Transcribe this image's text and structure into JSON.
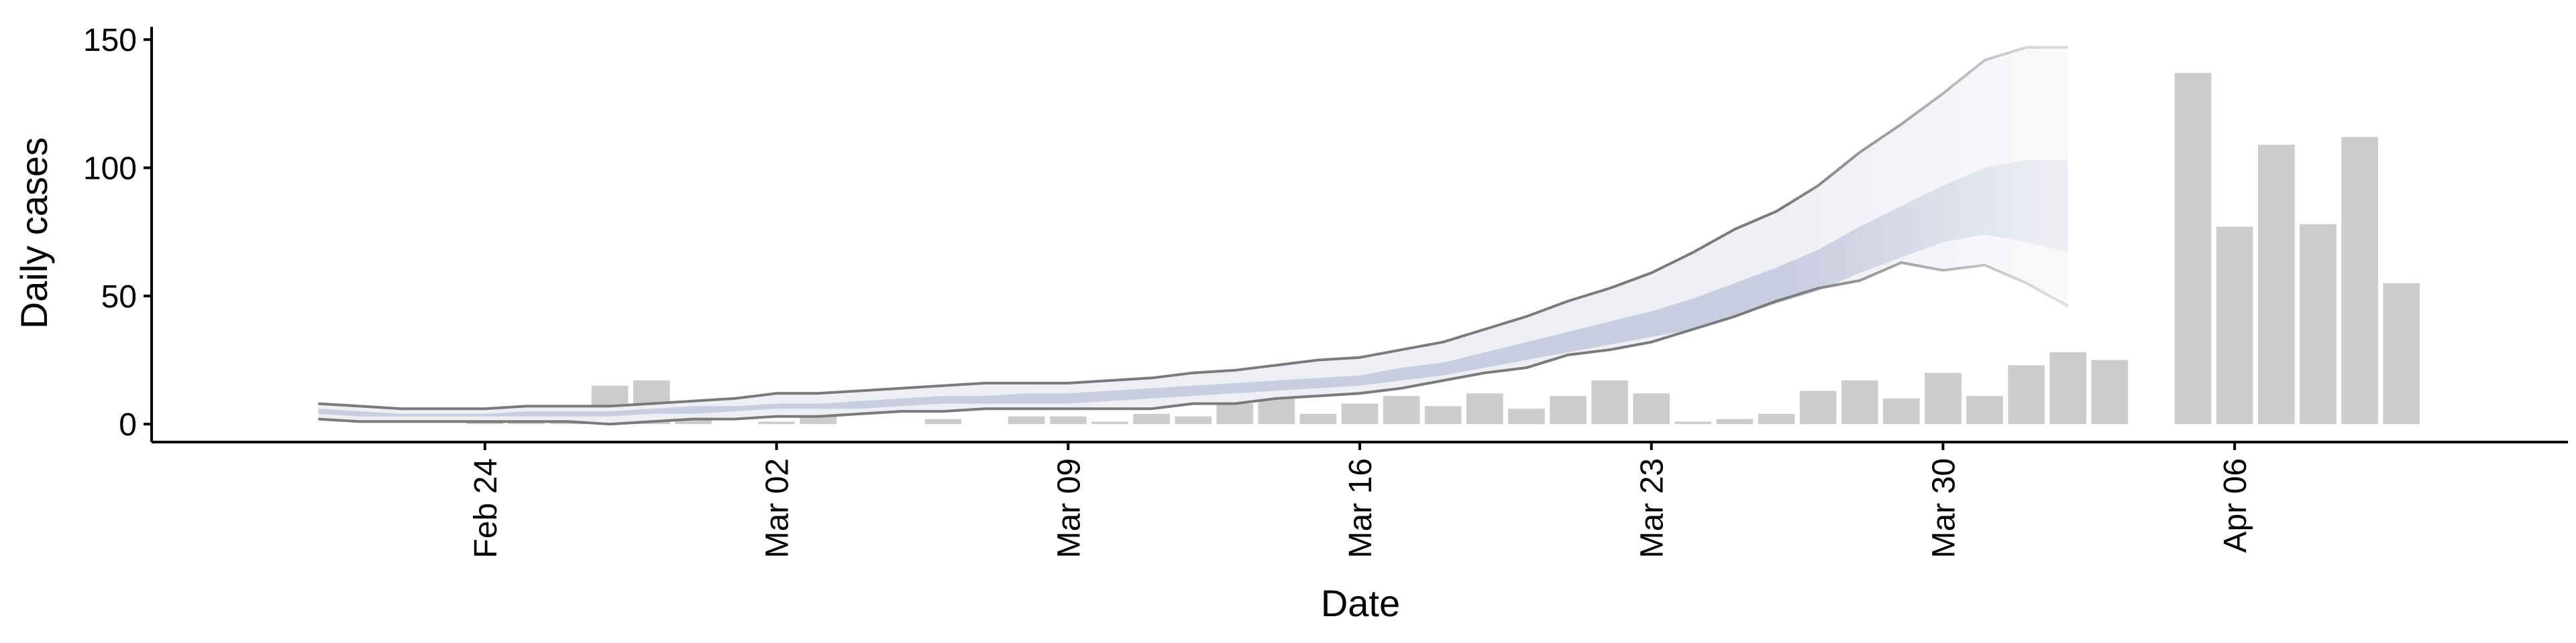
{
  "chart_data": {
    "type": "bar",
    "xlabel": "Date",
    "ylabel": "Daily cases",
    "ylim": [
      -7,
      155
    ],
    "xlim": [
      "2020-02-16",
      "2020-04-14"
    ],
    "x_ticks": [
      {
        "date": "2020-02-24",
        "label": "Feb 24"
      },
      {
        "date": "2020-03-02",
        "label": "Mar 02"
      },
      {
        "date": "2020-03-09",
        "label": "Mar 09"
      },
      {
        "date": "2020-03-16",
        "label": "Mar 16"
      },
      {
        "date": "2020-03-23",
        "label": "Mar 23"
      },
      {
        "date": "2020-03-30",
        "label": "Mar 30"
      },
      {
        "date": "2020-04-06",
        "label": "Apr 06"
      }
    ],
    "y_ticks": [
      0,
      50,
      100,
      150
    ],
    "grid": false,
    "colors": {
      "bars": "#cccccc",
      "band_outer": "#eeeff5",
      "band_inner": "#c9cde0",
      "outline": "#7a7a7a",
      "axis": "#000000"
    },
    "bars": {
      "dates": [
        "2020-02-24",
        "2020-02-25",
        "2020-02-26",
        "2020-02-27",
        "2020-02-28",
        "2020-02-29",
        "2020-03-01",
        "2020-03-02",
        "2020-03-03",
        "2020-03-04",
        "2020-03-05",
        "2020-03-06",
        "2020-03-07",
        "2020-03-08",
        "2020-03-09",
        "2020-03-10",
        "2020-03-11",
        "2020-03-12",
        "2020-03-13",
        "2020-03-14",
        "2020-03-15",
        "2020-03-16",
        "2020-03-17",
        "2020-03-18",
        "2020-03-19",
        "2020-03-20",
        "2020-03-21",
        "2020-03-22",
        "2020-03-23",
        "2020-03-24",
        "2020-03-25",
        "2020-03-26",
        "2020-03-27",
        "2020-03-28",
        "2020-03-29",
        "2020-03-30",
        "2020-03-31",
        "2020-04-01",
        "2020-04-02",
        "2020-04-03",
        "2020-04-04",
        "2020-04-05",
        "2020-04-06",
        "2020-04-07",
        "2020-04-08",
        "2020-04-09",
        "2020-04-10"
      ],
      "values": [
        3,
        3,
        6,
        15,
        17,
        2,
        0,
        1,
        10,
        0,
        0,
        2,
        0,
        3,
        3,
        1,
        4,
        3,
        8,
        20,
        4,
        8,
        11,
        7,
        12,
        6,
        11,
        17,
        12,
        1,
        2,
        4,
        13,
        17,
        10,
        20,
        11,
        23,
        28,
        25,
        0,
        137,
        77,
        109,
        78,
        112,
        55
      ]
    },
    "forecast": {
      "dates": [
        "2020-02-20",
        "2020-02-21",
        "2020-02-22",
        "2020-02-23",
        "2020-02-24",
        "2020-02-25",
        "2020-02-26",
        "2020-02-27",
        "2020-02-28",
        "2020-02-29",
        "2020-03-01",
        "2020-03-02",
        "2020-03-03",
        "2020-03-04",
        "2020-03-05",
        "2020-03-06",
        "2020-03-07",
        "2020-03-08",
        "2020-03-09",
        "2020-03-10",
        "2020-03-11",
        "2020-03-12",
        "2020-03-13",
        "2020-03-14",
        "2020-03-15",
        "2020-03-16",
        "2020-03-17",
        "2020-03-18",
        "2020-03-19",
        "2020-03-20",
        "2020-03-21",
        "2020-03-22",
        "2020-03-23",
        "2020-03-24",
        "2020-03-25",
        "2020-03-26",
        "2020-03-27",
        "2020-03-28",
        "2020-03-29",
        "2020-03-30",
        "2020-03-31",
        "2020-04-01",
        "2020-04-02"
      ],
      "upper": [
        8,
        7,
        6,
        6,
        6,
        7,
        7,
        7,
        8,
        9,
        10,
        12,
        12,
        13,
        14,
        15,
        16,
        16,
        16,
        17,
        18,
        20,
        21,
        23,
        25,
        26,
        29,
        32,
        37,
        42,
        48,
        53,
        59,
        67,
        76,
        83,
        93,
        106,
        117,
        129,
        142,
        147,
        147
      ],
      "inner_upper": [
        6,
        5,
        4,
        4,
        4,
        5,
        5,
        5,
        6,
        7,
        7,
        8,
        8,
        9,
        10,
        11,
        11,
        12,
        12,
        13,
        14,
        15,
        16,
        17,
        18,
        19,
        22,
        24,
        28,
        32,
        36,
        40,
        44,
        49,
        55,
        61,
        68,
        77,
        85,
        93,
        100,
        103,
        103
      ],
      "inner_lower": [
        4,
        3,
        3,
        3,
        3,
        3,
        3,
        3,
        4,
        4,
        5,
        6,
        6,
        6,
        7,
        8,
        8,
        8,
        8,
        9,
        10,
        11,
        12,
        13,
        14,
        15,
        17,
        19,
        22,
        25,
        28,
        31,
        34,
        37,
        42,
        47,
        52,
        59,
        65,
        71,
        74,
        71,
        67
      ],
      "lower": [
        2,
        1,
        1,
        1,
        1,
        1,
        1,
        0,
        1,
        2,
        2,
        3,
        3,
        4,
        5,
        5,
        6,
        6,
        6,
        6,
        6,
        8,
        8,
        10,
        11,
        12,
        14,
        17,
        20,
        22,
        27,
        29,
        32,
        37,
        42,
        48,
        53,
        56,
        63,
        60,
        62,
        55,
        46
      ]
    }
  }
}
